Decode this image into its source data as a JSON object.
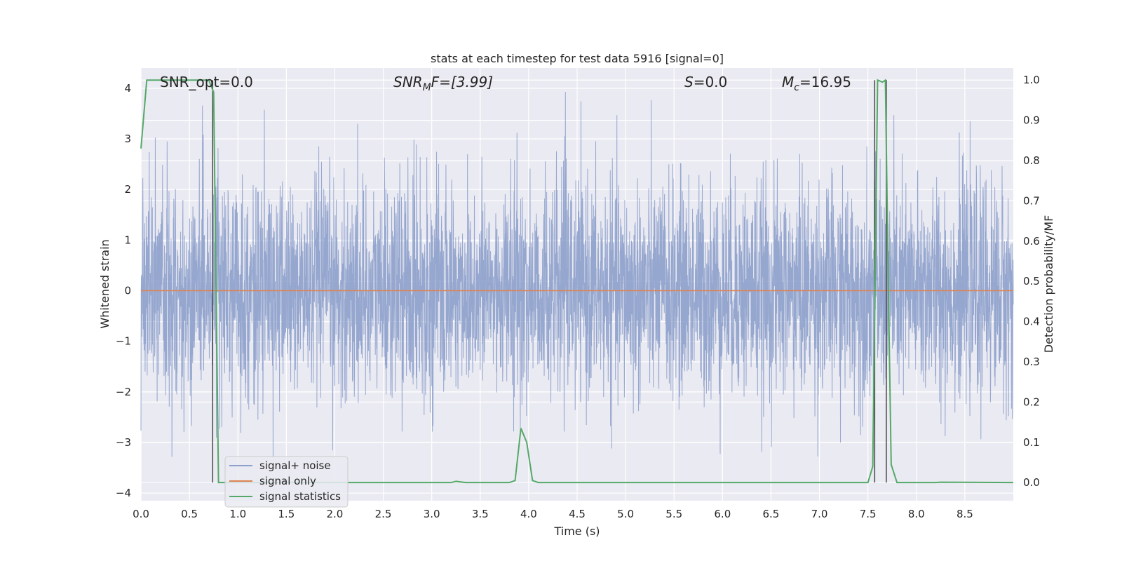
{
  "chart_data": {
    "type": "line",
    "title": "stats at each timestep for test data 5916 [signal=0]",
    "xlabel": "Time (s)",
    "ylabel": "Whitened strain",
    "ylabel_right": "Detection probability/MF",
    "xlim": [
      0.0,
      9.0
    ],
    "ylim": [
      -4.15,
      4.4
    ],
    "ylim_right": [
      -0.045,
      1.03
    ],
    "xticks": [
      "0.0",
      "0.5",
      "1.0",
      "1.5",
      "2.0",
      "2.5",
      "3.0",
      "3.5",
      "4.0",
      "4.5",
      "5.0",
      "5.5",
      "6.0",
      "6.5",
      "7.0",
      "7.5",
      "8.0",
      "8.5"
    ],
    "yticks": [
      "4",
      "3",
      "2",
      "1",
      "0",
      "−1",
      "−2",
      "−3",
      "−4"
    ],
    "yticks_right": [
      "1.0",
      "0.9",
      "0.8",
      "0.7",
      "0.6",
      "0.5",
      "0.4",
      "0.3",
      "0.2",
      "0.1",
      "0.0"
    ],
    "grid": true,
    "legend_position": "lower-left",
    "annotations": {
      "snr_opt": "SNR_opt=0.0",
      "snr_mf_main": "SNR",
      "snr_mf_sub": "M",
      "snr_mf_rest": "F=[3.99]",
      "s_main": "S",
      "s_rest": "=0.0",
      "mc_main": "M",
      "mc_sub": "c",
      "mc_rest": "=16.95"
    },
    "series": [
      {
        "name": "signal+ noise",
        "axis": "left",
        "color": "#8da0cb",
        "style": "dense noise, approx. unit-variance whitened strain",
        "envelope": {
          "typical": [
            -1.5,
            1.5
          ],
          "peaks": [
            -3.3,
            4.0
          ]
        },
        "x_range": [
          0.0,
          9.0
        ]
      },
      {
        "name": "signal only",
        "axis": "left",
        "color": "#dd8452",
        "x": [
          0.0,
          9.0
        ],
        "values": [
          0.0,
          0.0
        ]
      },
      {
        "name": "signal statistics",
        "axis": "right",
        "color": "#55a868",
        "x": [
          0.0,
          0.06,
          0.12,
          0.5,
          0.7,
          0.75,
          0.8,
          1.0,
          3.2,
          3.25,
          3.35,
          3.8,
          3.86,
          3.92,
          3.98,
          4.04,
          4.1,
          7.5,
          7.55,
          7.6,
          7.65,
          7.68,
          7.71,
          7.74,
          7.8,
          8.2,
          8.25,
          9.0
        ],
        "values": [
          0.83,
          1.0,
          1.0,
          1.0,
          1.0,
          0.97,
          0.0,
          0.0,
          0.0,
          0.003,
          0.0,
          0.0,
          0.005,
          0.135,
          0.1,
          0.005,
          0.0,
          0.0,
          0.04,
          1.0,
          0.995,
          1.0,
          0.5,
          0.045,
          0.0,
          0.0,
          0.001,
          0.0
        ]
      }
    ],
    "vertical_markers": [
      0.74,
      7.57,
      7.69
    ],
    "marker_color": "#4a4a4a"
  }
}
